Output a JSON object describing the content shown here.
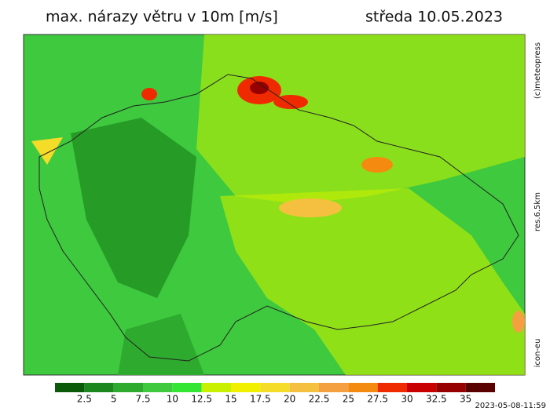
{
  "header": {
    "title": "max. nárazy větru v 10m [m/s]",
    "date": "středa 10.05.2023"
  },
  "side": {
    "copyright": "(c)meteopress",
    "resolution": "res.6.5km",
    "model": "icon-eu"
  },
  "legend": {
    "colors": [
      "#0a5a0a",
      "#1c871c",
      "#2eaa2e",
      "#3ec93e",
      "#33e633",
      "#c8f000",
      "#f0f000",
      "#f5dc28",
      "#f5c040",
      "#f5a040",
      "#f58a10",
      "#f02a00",
      "#c80000",
      "#960000",
      "#5a0000"
    ],
    "labels": [
      2.5,
      5,
      7.5,
      10,
      12.5,
      15,
      17.5,
      20,
      22.5,
      25,
      27.5,
      30,
      32.5,
      35
    ]
  },
  "timestamp": "2023-05-08-11:59"
}
